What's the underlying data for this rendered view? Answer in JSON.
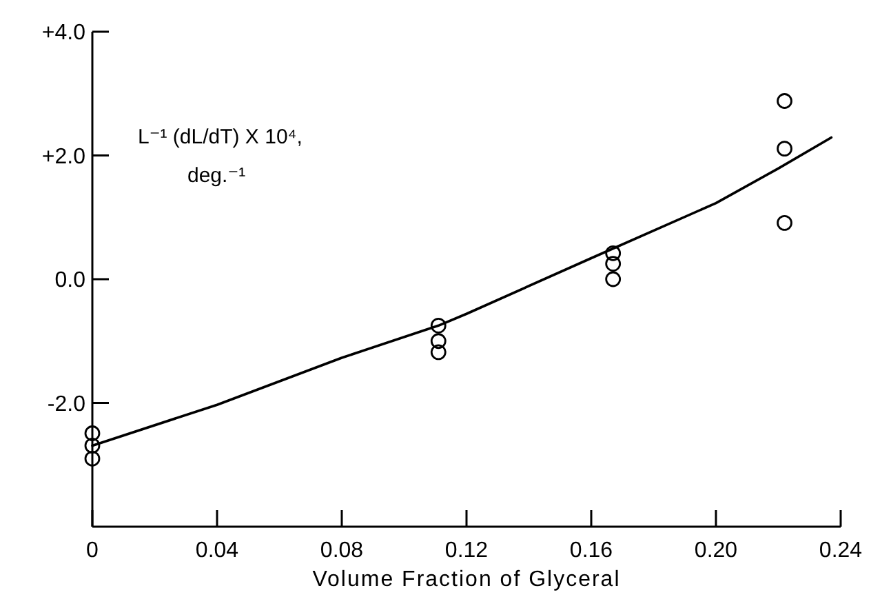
{
  "chart_data": {
    "type": "scatter",
    "xlabel": "Volume Fraction of Glyceral",
    "annotations": [
      "L⁻¹ (dL/dT) X 10⁴,",
      "deg.⁻¹"
    ],
    "xlim": [
      0,
      0.24
    ],
    "xticks": [
      {
        "value": 0,
        "label": "0"
      },
      {
        "value": 0.04,
        "label": "0.04"
      },
      {
        "value": 0.08,
        "label": "0.08"
      },
      {
        "value": 0.12,
        "label": "0.12"
      },
      {
        "value": 0.16,
        "label": "0.16"
      },
      {
        "value": 0.2,
        "label": "0.20"
      },
      {
        "value": 0.24,
        "label": "0.24"
      }
    ],
    "ylim": [
      -4,
      4
    ],
    "yticks": [
      {
        "value": 4,
        "label": "+4.0"
      },
      {
        "value": 2,
        "label": "+2.0"
      },
      {
        "value": 0,
        "label": "0.0"
      },
      {
        "value": -2,
        "label": "-2.0"
      }
    ],
    "grid": false,
    "marker": "circle",
    "series": [
      {
        "color": "#000000",
        "x": [
          0,
          0,
          0,
          0.111,
          0.111,
          0.111,
          0.167,
          0.167,
          0.167,
          0.222,
          0.222,
          0.222
        ],
        "values": [
          -2.49,
          -2.69,
          -2.9,
          -0.75,
          -1.0,
          -1.18,
          0.42,
          0.25,
          0.0,
          2.88,
          2.11,
          0.91
        ]
      },
      {
        "type": "line",
        "color": "#000000",
        "marker": "none",
        "line_style": "solid",
        "x": [
          0,
          0.04,
          0.08,
          0.111,
          0.12,
          0.16,
          0.2,
          0.22,
          0.237
        ],
        "values": [
          -2.69,
          -2.03,
          -1.27,
          -0.75,
          -0.56,
          0.34,
          1.23,
          1.79,
          2.29
        ]
      }
    ]
  }
}
